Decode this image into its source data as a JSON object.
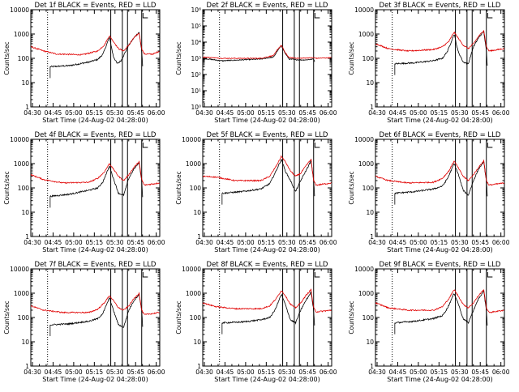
{
  "colors": {
    "events": "#000000",
    "lld": "#e00000",
    "axis": "#000000"
  },
  "shared": {
    "xlabel": "Start Time (24-Aug-02 04:28:00)",
    "ylabel": "Counts/sec",
    "xticks": [
      "04:30",
      "04:45",
      "05:00",
      "05:15",
      "05:30",
      "05:45",
      "06:00"
    ],
    "xlim_minutes": [
      0,
      100
    ],
    "vlines_solid_minutes": [
      62,
      71,
      75,
      86
    ],
    "vline_dotted_minutes": 13,
    "yscale": "log"
  },
  "chart_data": [
    {
      "type": "line",
      "title": "Det 1f BLACK = Events, RED = LLD",
      "ylim": [
        1,
        10000
      ],
      "yticks": [
        "1",
        "10",
        "100",
        "1000",
        "10000"
      ],
      "series": [
        {
          "name": "Events",
          "color": "#000000",
          "start": 15,
          "end": 87,
          "x": [
            15,
            30,
            45,
            52,
            56,
            61,
            64,
            67,
            70,
            76,
            80,
            84,
            86,
            87
          ],
          "y": [
            45,
            50,
            70,
            90,
            150,
            750,
            120,
            60,
            80,
            350,
            700,
            1200,
            200,
            30
          ]
        },
        {
          "name": "LLD",
          "color": "#e00000",
          "start": 0,
          "end": 100,
          "x": [
            0,
            10,
            20,
            40,
            52,
            57,
            61,
            64,
            68,
            72,
            76,
            80,
            84,
            86,
            88,
            95,
            100
          ],
          "y": [
            300,
            200,
            150,
            140,
            200,
            350,
            850,
            500,
            250,
            200,
            350,
            700,
            1100,
            250,
            150,
            150,
            200
          ]
        }
      ]
    },
    {
      "type": "line",
      "title": "Det 2f BLACK = Events, RED = LLD",
      "ylim": [
        1,
        1000000
      ],
      "yticks": [
        "10⁰",
        "10¹",
        "10²",
        "10³",
        "10⁴",
        "10⁵",
        "10⁶"
      ],
      "series": [
        {
          "name": "Events",
          "color": "#000000",
          "start": 0,
          "end": 87,
          "x": [
            0,
            15,
            30,
            45,
            55,
            58,
            61,
            64,
            67,
            75,
            80,
            86,
            87
          ],
          "y": [
            1000,
            700,
            800,
            900,
            1200,
            3000,
            6000,
            2000,
            900,
            800,
            800,
            900,
            600
          ]
        },
        {
          "name": "LLD",
          "color": "#e00000",
          "start": 0,
          "end": 100,
          "x": [
            0,
            15,
            30,
            45,
            55,
            58,
            61,
            64,
            67,
            75,
            86,
            88,
            100
          ],
          "y": [
            1200,
            1000,
            1000,
            1000,
            1500,
            3500,
            6500,
            2200,
            1100,
            1000,
            1100,
            1000,
            1100
          ]
        }
      ]
    },
    {
      "type": "line",
      "title": "Det 3f BLACK = Events, RED = LLD",
      "ylim": [
        1,
        10000
      ],
      "yticks": [
        "1",
        "10",
        "100",
        "1000",
        "10000"
      ],
      "series": [
        {
          "name": "Events",
          "color": "#000000",
          "start": 15,
          "end": 87,
          "x": [
            15,
            30,
            45,
            52,
            56,
            61,
            64,
            68,
            72,
            76,
            80,
            84,
            86,
            87
          ],
          "y": [
            60,
            65,
            80,
            100,
            200,
            1000,
            200,
            70,
            60,
            300,
            700,
            1300,
            200,
            30
          ]
        },
        {
          "name": "LLD",
          "color": "#e00000",
          "start": 0,
          "end": 100,
          "x": [
            0,
            10,
            25,
            45,
            52,
            57,
            61,
            64,
            68,
            72,
            76,
            80,
            84,
            86,
            88,
            100
          ],
          "y": [
            400,
            250,
            200,
            230,
            300,
            500,
            1200,
            700,
            350,
            250,
            400,
            800,
            1400,
            300,
            200,
            250
          ]
        }
      ]
    },
    {
      "type": "line",
      "title": "Det 4f BLACK = Events, RED = LLD",
      "ylim": [
        1,
        10000
      ],
      "yticks": [
        "1",
        "10",
        "100",
        "1000",
        "10000"
      ],
      "series": [
        {
          "name": "Events",
          "color": "#000000",
          "start": 15,
          "end": 87,
          "x": [
            15,
            30,
            45,
            52,
            56,
            61,
            64,
            68,
            72,
            76,
            80,
            84,
            86,
            87
          ],
          "y": [
            45,
            55,
            80,
            100,
            180,
            800,
            250,
            60,
            50,
            250,
            600,
            1100,
            200,
            25
          ]
        },
        {
          "name": "LLD",
          "color": "#e00000",
          "start": 0,
          "end": 100,
          "x": [
            0,
            10,
            25,
            45,
            52,
            57,
            61,
            64,
            68,
            72,
            76,
            80,
            84,
            86,
            88,
            100
          ],
          "y": [
            350,
            220,
            160,
            170,
            250,
            450,
            1000,
            600,
            300,
            200,
            350,
            700,
            1200,
            220,
            130,
            160
          ]
        }
      ]
    },
    {
      "type": "line",
      "title": "Det 5f BLACK = Events, RED = LLD",
      "ylim": [
        1,
        10000
      ],
      "yticks": [
        "1",
        "10",
        "100",
        "1000",
        "10000"
      ],
      "series": [
        {
          "name": "Events",
          "color": "#000000",
          "start": 15,
          "end": 87,
          "x": [
            15,
            30,
            45,
            52,
            56,
            61,
            64,
            68,
            72,
            76,
            80,
            84,
            86,
            87
          ],
          "y": [
            60,
            70,
            90,
            150,
            400,
            1500,
            500,
            200,
            70,
            200,
            500,
            1300,
            200,
            30
          ]
        },
        {
          "name": "LLD",
          "color": "#e00000",
          "start": 0,
          "end": 100,
          "x": [
            0,
            10,
            25,
            45,
            52,
            57,
            61,
            64,
            68,
            72,
            76,
            80,
            84,
            86,
            88,
            100
          ],
          "y": [
            300,
            280,
            200,
            200,
            300,
            800,
            2000,
            1200,
            500,
            300,
            400,
            800,
            1500,
            200,
            130,
            160
          ]
        }
      ]
    },
    {
      "type": "line",
      "title": "Det 6f BLACK = Events, RED = LLD",
      "ylim": [
        1,
        10000
      ],
      "yticks": [
        "1",
        "10",
        "100",
        "1000",
        "10000"
      ],
      "series": [
        {
          "name": "Events",
          "color": "#000000",
          "start": 15,
          "end": 87,
          "x": [
            15,
            30,
            45,
            52,
            56,
            61,
            64,
            68,
            72,
            76,
            80,
            84,
            86,
            87
          ],
          "y": [
            60,
            70,
            90,
            120,
            250,
            1000,
            400,
            80,
            50,
            200,
            600,
            1200,
            200,
            30
          ]
        },
        {
          "name": "LLD",
          "color": "#e00000",
          "start": 0,
          "end": 100,
          "x": [
            0,
            10,
            25,
            45,
            52,
            57,
            61,
            64,
            68,
            72,
            76,
            80,
            84,
            86,
            88,
            100
          ],
          "y": [
            300,
            200,
            160,
            170,
            250,
            500,
            1300,
            700,
            300,
            200,
            350,
            700,
            1300,
            200,
            130,
            160
          ]
        }
      ]
    },
    {
      "type": "line",
      "title": "Det 7f BLACK = Events, RED = LLD",
      "ylim": [
        1,
        10000
      ],
      "yticks": [
        "1",
        "10",
        "100",
        "1000",
        "10000"
      ],
      "series": [
        {
          "name": "Events",
          "color": "#000000",
          "start": 15,
          "end": 87,
          "x": [
            15,
            30,
            45,
            52,
            56,
            61,
            64,
            68,
            72,
            76,
            80,
            84,
            86,
            87
          ],
          "y": [
            50,
            55,
            70,
            90,
            150,
            650,
            200,
            50,
            40,
            200,
            500,
            900,
            200,
            25
          ]
        },
        {
          "name": "LLD",
          "color": "#e00000",
          "start": 0,
          "end": 100,
          "x": [
            0,
            10,
            25,
            45,
            52,
            57,
            61,
            64,
            68,
            72,
            76,
            80,
            84,
            86,
            88,
            100
          ],
          "y": [
            300,
            200,
            160,
            160,
            220,
            400,
            800,
            500,
            250,
            200,
            300,
            600,
            1000,
            200,
            130,
            160
          ]
        }
      ]
    },
    {
      "type": "line",
      "title": "Det 8f BLACK = Events, RED = LLD",
      "ylim": [
        1,
        10000
      ],
      "yticks": [
        "1",
        "10",
        "100",
        "1000",
        "10000"
      ],
      "series": [
        {
          "name": "Events",
          "color": "#000000",
          "start": 15,
          "end": 87,
          "x": [
            15,
            30,
            45,
            52,
            56,
            61,
            64,
            68,
            72,
            76,
            80,
            84,
            86,
            87
          ],
          "y": [
            60,
            65,
            80,
            100,
            200,
            900,
            350,
            80,
            60,
            200,
            500,
            1100,
            200,
            30
          ]
        },
        {
          "name": "LLD",
          "color": "#e00000",
          "start": 0,
          "end": 100,
          "x": [
            0,
            10,
            25,
            45,
            52,
            57,
            61,
            64,
            68,
            72,
            76,
            80,
            84,
            86,
            88,
            100
          ],
          "y": [
            400,
            280,
            230,
            230,
            300,
            600,
            1300,
            800,
            350,
            250,
            400,
            800,
            1400,
            250,
            170,
            200
          ]
        }
      ]
    },
    {
      "type": "line",
      "title": "Det 9f BLACK = Events, RED = LLD",
      "ylim": [
        1,
        10000
      ],
      "yticks": [
        "1",
        "10",
        "100",
        "1000",
        "10000"
      ],
      "series": [
        {
          "name": "Events",
          "color": "#000000",
          "start": 15,
          "end": 87,
          "x": [
            15,
            30,
            45,
            52,
            56,
            61,
            64,
            68,
            72,
            76,
            80,
            84,
            86,
            87
          ],
          "y": [
            60,
            70,
            90,
            120,
            250,
            1000,
            400,
            90,
            60,
            200,
            600,
            1200,
            200,
            30
          ]
        },
        {
          "name": "LLD",
          "color": "#e00000",
          "start": 0,
          "end": 100,
          "x": [
            0,
            10,
            25,
            45,
            52,
            57,
            61,
            64,
            68,
            72,
            76,
            80,
            84,
            86,
            88,
            100
          ],
          "y": [
            400,
            250,
            200,
            200,
            280,
            600,
            1400,
            800,
            350,
            250,
            400,
            800,
            1400,
            250,
            160,
            200
          ]
        }
      ]
    }
  ]
}
